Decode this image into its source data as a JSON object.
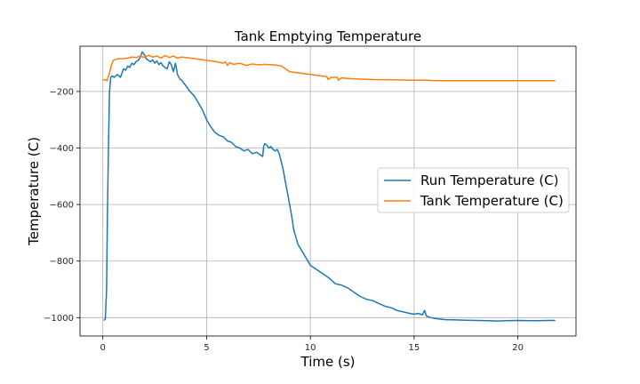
{
  "chart_data": {
    "type": "line",
    "title": "Tank Emptying Temperature",
    "xlabel": "Time (s)",
    "ylabel": "Temperature (C)",
    "xlim": [
      -1.1,
      22.8
    ],
    "ylim": [
      -1065,
      -40
    ],
    "xticks": [
      0,
      5,
      10,
      15,
      20
    ],
    "yticks": [
      -1000,
      -800,
      -600,
      -400,
      -200
    ],
    "grid": true,
    "legend_position": "center-right",
    "series": [
      {
        "name": "Run Temperature (C)",
        "color": "#1f77b4",
        "x": [
          0.05,
          0.12,
          0.18,
          0.22,
          0.27,
          0.32,
          0.38,
          0.45,
          0.55,
          0.7,
          0.85,
          1.0,
          1.1,
          1.2,
          1.3,
          1.4,
          1.5,
          1.6,
          1.7,
          1.8,
          1.9,
          2.0,
          2.1,
          2.2,
          2.3,
          2.4,
          2.5,
          2.6,
          2.7,
          2.8,
          2.9,
          3.0,
          3.1,
          3.2,
          3.3,
          3.4,
          3.5,
          3.6,
          3.7,
          3.8,
          3.9,
          4.0,
          4.2,
          4.4,
          4.6,
          4.8,
          5.0,
          5.2,
          5.4,
          5.6,
          5.8,
          6.0,
          6.2,
          6.4,
          6.6,
          6.8,
          7.0,
          7.2,
          7.4,
          7.6,
          7.7,
          7.75,
          7.8,
          7.9,
          8.0,
          8.1,
          8.2,
          8.3,
          8.4,
          8.5,
          8.6,
          8.7,
          8.8,
          8.9,
          9.0,
          9.1,
          9.2,
          9.4,
          9.6,
          9.8,
          10.0,
          10.3,
          10.6,
          10.9,
          11.2,
          11.5,
          11.8,
          12.1,
          12.4,
          12.7,
          13.0,
          13.3,
          13.6,
          13.9,
          14.2,
          14.5,
          14.8,
          15.0,
          15.2,
          15.4,
          15.5,
          15.6,
          15.8,
          16.0,
          16.5,
          17.0,
          17.5,
          18.0,
          18.5,
          19.0,
          19.5,
          20.0,
          20.5,
          21.0,
          21.5,
          21.8
        ],
        "y": [
          -1010,
          -1005,
          -900,
          -650,
          -400,
          -200,
          -150,
          -145,
          -150,
          -140,
          -150,
          -120,
          -125,
          -110,
          -115,
          -100,
          -105,
          -95,
          -90,
          -80,
          -60,
          -70,
          -85,
          -90,
          -95,
          -88,
          -100,
          -92,
          -105,
          -98,
          -110,
          -115,
          -120,
          -95,
          -105,
          -130,
          -100,
          -140,
          -155,
          -160,
          -170,
          -180,
          -200,
          -215,
          -240,
          -265,
          -300,
          -325,
          -345,
          -355,
          -360,
          -375,
          -380,
          -395,
          -400,
          -410,
          -405,
          -420,
          -415,
          -425,
          -430,
          -395,
          -385,
          -390,
          -400,
          -395,
          -405,
          -410,
          -405,
          -420,
          -450,
          -480,
          -520,
          -560,
          -600,
          -640,
          -690,
          -740,
          -765,
          -790,
          -815,
          -830,
          -845,
          -860,
          -880,
          -885,
          -895,
          -910,
          -925,
          -935,
          -940,
          -950,
          -960,
          -965,
          -975,
          -980,
          -985,
          -988,
          -985,
          -990,
          -975,
          -995,
          -1000,
          -1003,
          -1007,
          -1008,
          -1009,
          -1010,
          -1011,
          -1012,
          -1011,
          -1010,
          -1011,
          -1011,
          -1010,
          -1010
        ]
      },
      {
        "name": "Tank Temperature (C)",
        "color": "#ff7f0e",
        "x": [
          0.0,
          0.1,
          0.2,
          0.3,
          0.4,
          0.5,
          0.7,
          1.0,
          1.2,
          1.4,
          1.6,
          1.8,
          2.0,
          2.2,
          2.4,
          2.6,
          2.8,
          3.0,
          3.2,
          3.4,
          3.6,
          3.8,
          4.0,
          4.5,
          5.0,
          5.5,
          5.8,
          5.9,
          6.0,
          6.1,
          6.3,
          6.6,
          6.9,
          7.2,
          7.5,
          7.8,
          8.0,
          8.3,
          8.6,
          8.8,
          9.0,
          9.5,
          10.0,
          10.5,
          10.8,
          10.85,
          11.0,
          11.3,
          11.35,
          11.5,
          12.0,
          13.0,
          14.0,
          15.0,
          15.6,
          16.0,
          17.0,
          18.0,
          19.0,
          20.0,
          21.0,
          21.8
        ],
        "y": [
          -160,
          -158,
          -162,
          -140,
          -110,
          -90,
          -85,
          -84,
          -82,
          -78,
          -80,
          -75,
          -80,
          -72,
          -78,
          -75,
          -82,
          -73,
          -80,
          -75,
          -82,
          -78,
          -80,
          -85,
          -90,
          -95,
          -100,
          -95,
          -108,
          -98,
          -104,
          -100,
          -108,
          -103,
          -106,
          -104,
          -105,
          -106,
          -110,
          -120,
          -130,
          -135,
          -140,
          -145,
          -148,
          -158,
          -150,
          -150,
          -160,
          -152,
          -155,
          -158,
          -159,
          -160,
          -160,
          -162,
          -162,
          -162,
          -162,
          -162,
          -162,
          -162
        ]
      }
    ]
  }
}
